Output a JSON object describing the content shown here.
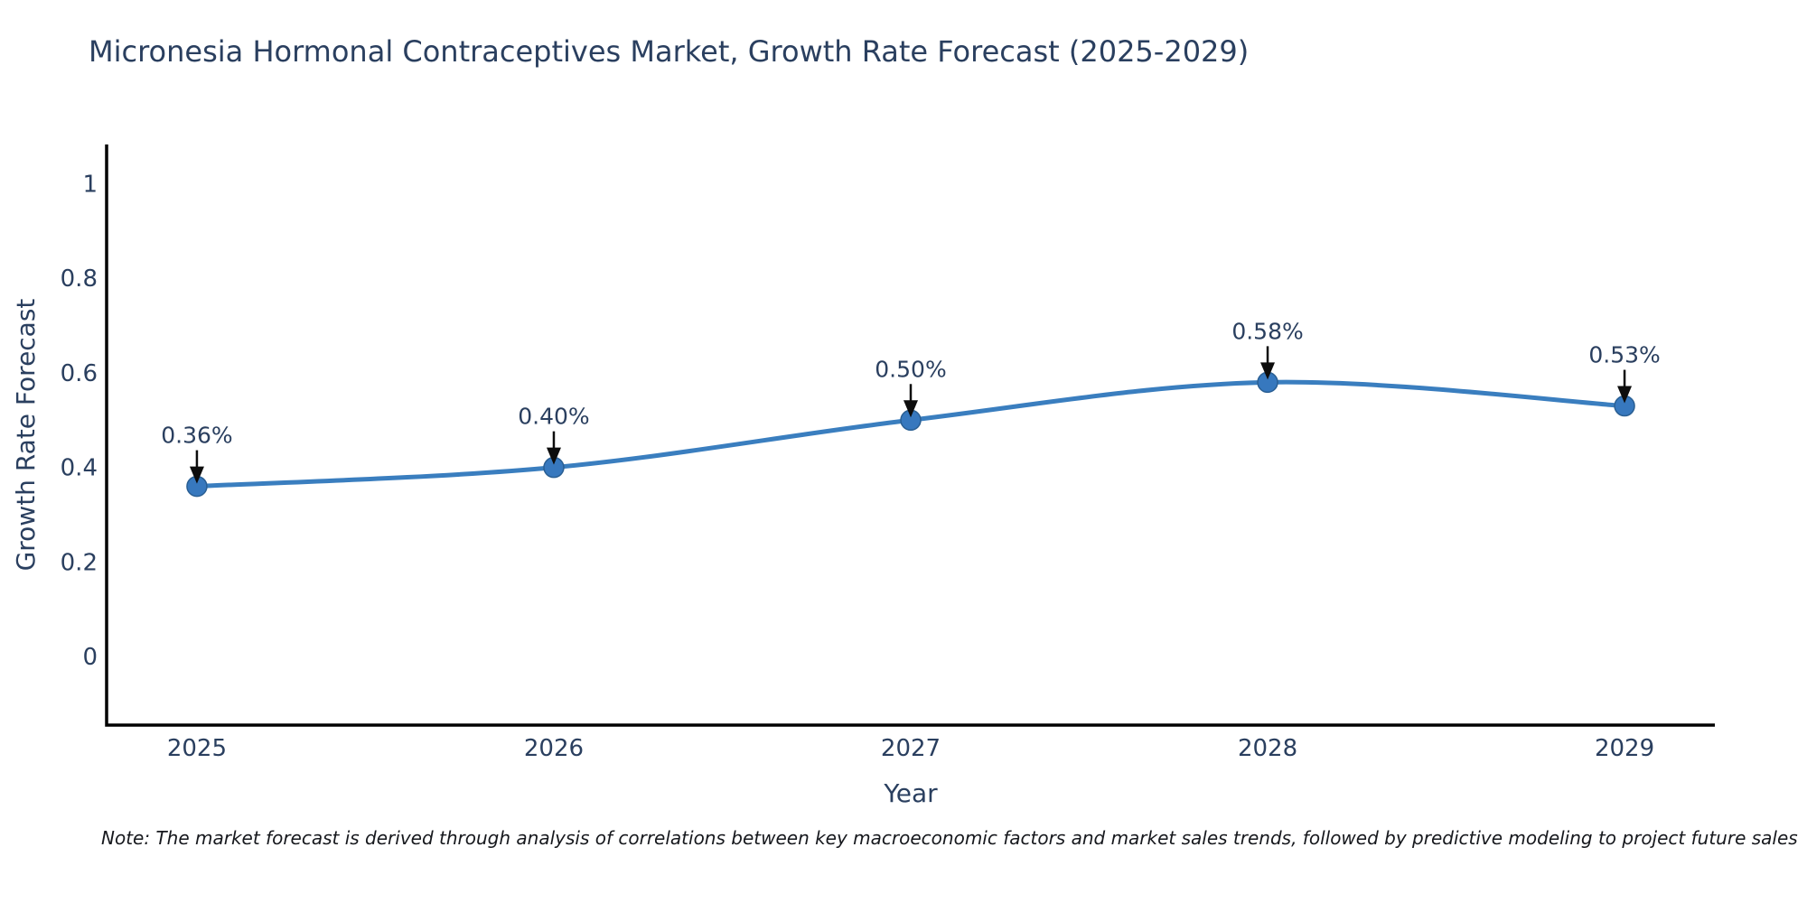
{
  "note": "Note: The market forecast is derived through analysis of correlations between key macroeconomic factors and market sales trends, followed by predictive modeling to project future sales",
  "chart_data": {
    "type": "line",
    "title": "Micronesia Hormonal Contraceptives Market, Growth Rate Forecast (2025-2029)",
    "xlabel": "Year",
    "ylabel": "Growth Rate Forecast",
    "x": [
      2025,
      2026,
      2027,
      2028,
      2029
    ],
    "y": [
      0.36,
      0.4,
      0.5,
      0.58,
      0.53
    ],
    "point_labels": [
      "0.36%",
      "0.40%",
      "0.50%",
      "0.58%",
      "0.53%"
    ],
    "yticks": [
      0,
      0.2,
      0.4,
      0.6,
      0.8,
      1
    ],
    "xticks": [
      2025,
      2026,
      2027,
      2028,
      2029
    ],
    "ylim": [
      -0.145,
      1.083
    ],
    "xlim": [
      2024.747,
      2029.253
    ],
    "grid": false,
    "legend": "none",
    "line_shape": "spline",
    "colors": {
      "line": "#3a7ebf",
      "marker": "#3778be",
      "marker_edge": "#2a5f93",
      "axis": "#000000",
      "text": "#2a3f5f",
      "arrow": "#0d0d0d"
    }
  }
}
